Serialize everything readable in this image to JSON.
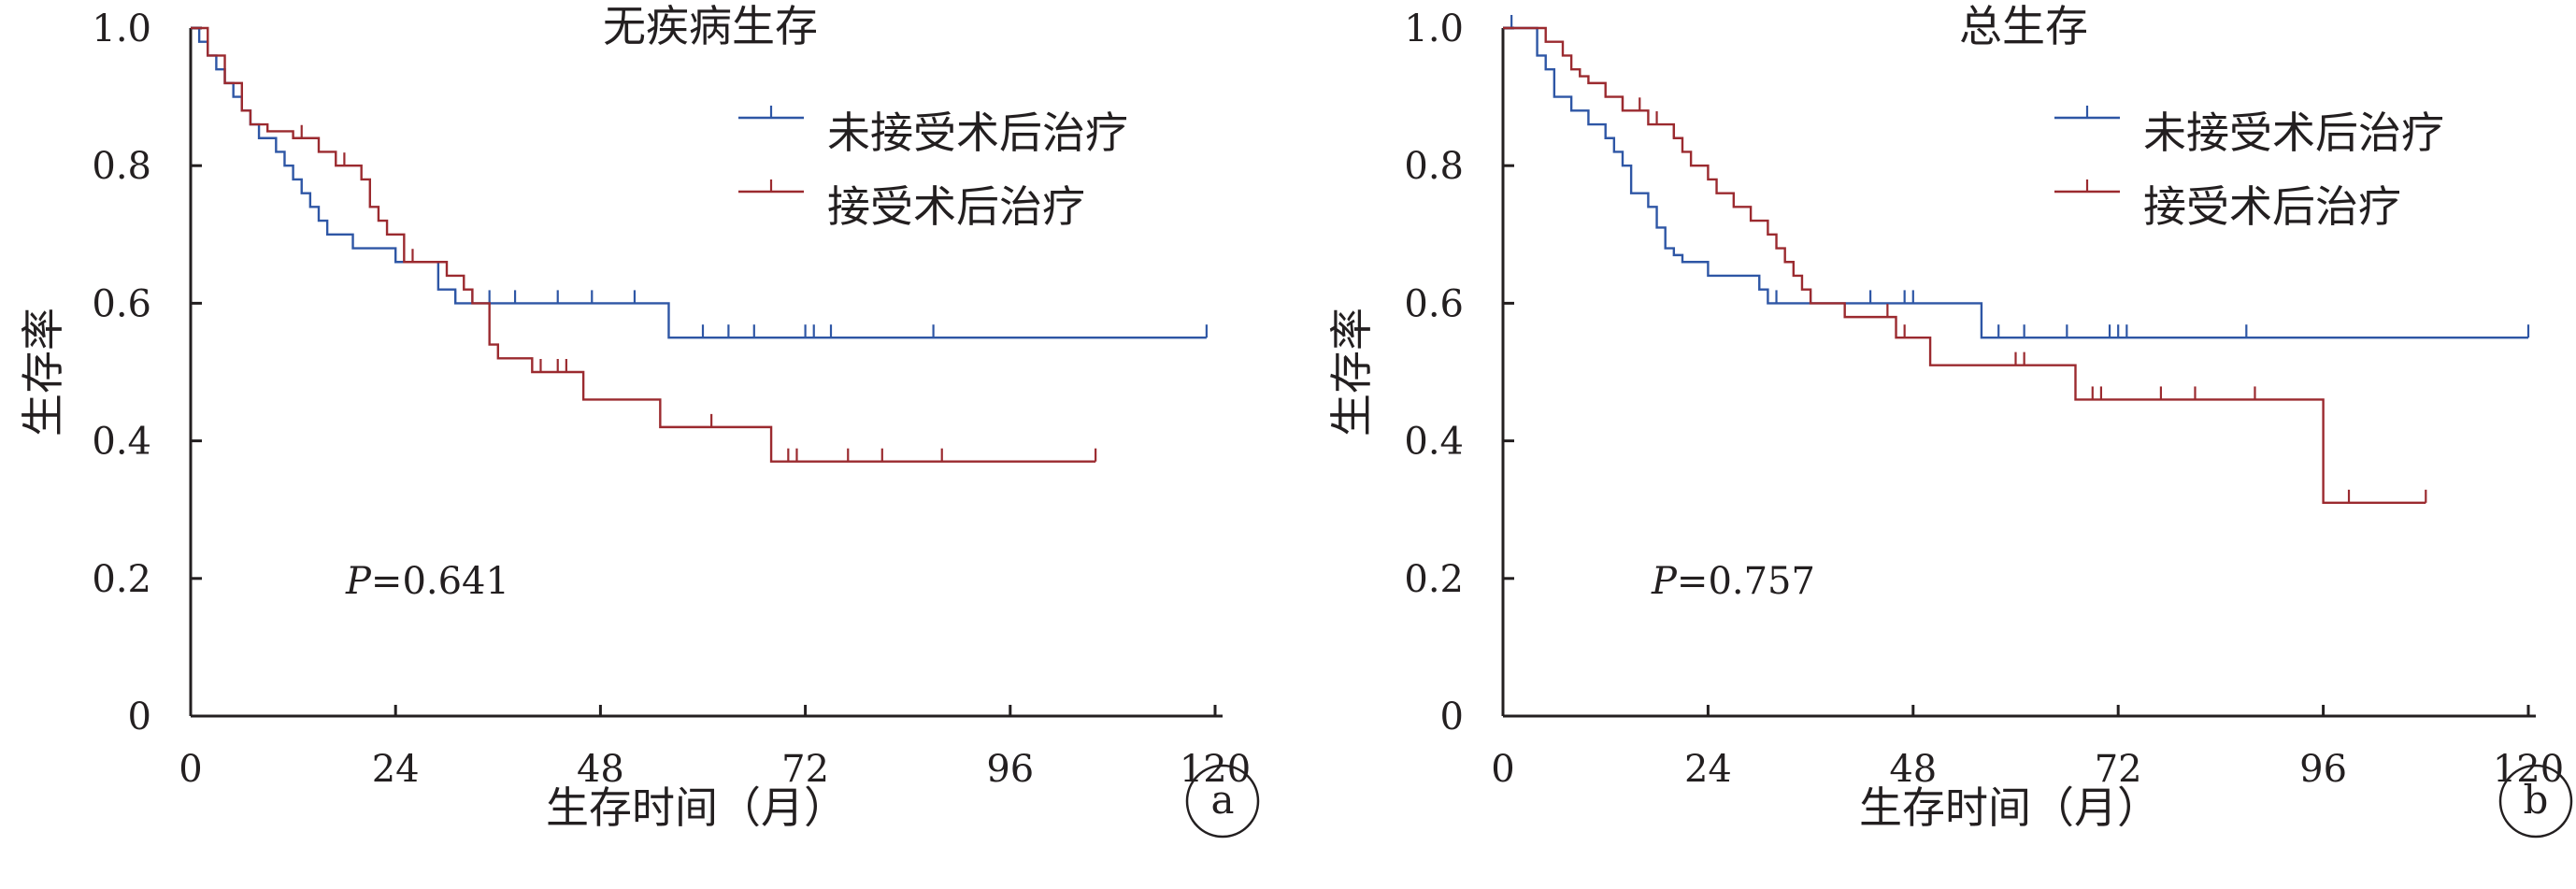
{
  "colors": {
    "untreated": "#2e56a5",
    "treated": "#9b2a2f",
    "axis": "#231f20"
  },
  "chart_data": [
    {
      "type": "line",
      "step": true,
      "panel_label": "a",
      "title": "无疾病生存",
      "xlabel": "生存时间（月）",
      "ylabel": "生存率",
      "xlim": [
        0,
        120
      ],
      "ylim": [
        0,
        1.0
      ],
      "x_ticks": [
        "0",
        "24",
        "48",
        "72",
        "96",
        "120"
      ],
      "y_ticks": [
        "0",
        "0.2",
        "0.4",
        "0.6",
        "0.8",
        "1.0"
      ],
      "annotation": {
        "italic": "P",
        "value": "=0.641"
      },
      "legend_position": "top-right",
      "series": [
        {
          "name": "未接受术后治疗",
          "color_key": "untreated",
          "x": [
            0,
            1,
            2,
            3,
            4,
            5,
            6,
            7,
            8,
            10,
            11,
            12,
            13,
            14,
            15,
            16,
            17,
            19,
            22,
            24,
            29,
            31,
            56,
            119
          ],
          "y": [
            1.0,
            0.98,
            0.96,
            0.94,
            0.92,
            0.9,
            0.88,
            0.86,
            0.84,
            0.82,
            0.8,
            0.78,
            0.76,
            0.74,
            0.72,
            0.7,
            0.7,
            0.68,
            0.68,
            0.66,
            0.62,
            0.6,
            0.55,
            0.55
          ],
          "censored": [
            31,
            33,
            35,
            38,
            43,
            47,
            52,
            60,
            63,
            66,
            72,
            73,
            75,
            87,
            119
          ]
        },
        {
          "name": "接受术后治疗",
          "color_key": "treated",
          "x": [
            0,
            2,
            4,
            6,
            7,
            9,
            12,
            15,
            17,
            19,
            20,
            21,
            22,
            23,
            25,
            30,
            32,
            33,
            35,
            36,
            40,
            46,
            55,
            68,
            106
          ],
          "y": [
            1.0,
            0.96,
            0.92,
            0.88,
            0.86,
            0.85,
            0.84,
            0.82,
            0.8,
            0.8,
            0.78,
            0.74,
            0.72,
            0.7,
            0.66,
            0.64,
            0.62,
            0.6,
            0.54,
            0.52,
            0.5,
            0.46,
            0.42,
            0.37,
            0.37
          ],
          "censored": [
            13,
            18,
            26,
            41,
            43,
            44,
            61,
            70,
            71,
            77,
            81,
            88,
            106
          ]
        }
      ]
    },
    {
      "type": "line",
      "step": true,
      "panel_label": "b",
      "title": "总生存",
      "xlabel": "生存时间（月）",
      "ylabel": "生存率",
      "xlim": [
        0,
        120
      ],
      "ylim": [
        0,
        1.0
      ],
      "x_ticks": [
        "0",
        "24",
        "48",
        "72",
        "96",
        "120"
      ],
      "y_ticks": [
        "0",
        "0.2",
        "0.4",
        "0.6",
        "0.8",
        "1.0"
      ],
      "annotation": {
        "italic": "P",
        "value": "=0.757"
      },
      "legend_position": "top-right",
      "series": [
        {
          "name": "未接受术后治疗",
          "color_key": "untreated",
          "x": [
            0,
            4,
            5,
            6,
            8,
            10,
            12,
            13,
            14,
            15,
            17,
            18,
            19,
            20,
            21,
            24,
            30,
            31,
            56,
            120
          ],
          "y": [
            1.0,
            0.96,
            0.94,
            0.9,
            0.88,
            0.86,
            0.84,
            0.82,
            0.8,
            0.76,
            0.74,
            0.71,
            0.68,
            0.67,
            0.66,
            0.64,
            0.62,
            0.6,
            0.55,
            0.55
          ],
          "censored": [
            1,
            32,
            36,
            43,
            47,
            48,
            58,
            61,
            66,
            71,
            72,
            73,
            87,
            120
          ]
        },
        {
          "name": "接受术后治疗",
          "color_key": "treated",
          "x": [
            0,
            5,
            7,
            8,
            9,
            10,
            12,
            14,
            15,
            17,
            20,
            21,
            22,
            24,
            25,
            27,
            29,
            31,
            32,
            33,
            34,
            35,
            36,
            40,
            46,
            50,
            67,
            96,
            108
          ],
          "y": [
            1.0,
            0.98,
            0.96,
            0.94,
            0.93,
            0.92,
            0.9,
            0.88,
            0.88,
            0.86,
            0.84,
            0.82,
            0.8,
            0.78,
            0.76,
            0.74,
            0.72,
            0.7,
            0.68,
            0.66,
            0.64,
            0.62,
            0.6,
            0.58,
            0.55,
            0.51,
            0.46,
            0.31,
            0.31
          ],
          "censored": [
            14,
            16,
            18,
            20,
            45,
            47,
            60,
            61,
            69,
            70,
            77,
            81,
            88,
            99,
            108
          ]
        }
      ]
    }
  ]
}
